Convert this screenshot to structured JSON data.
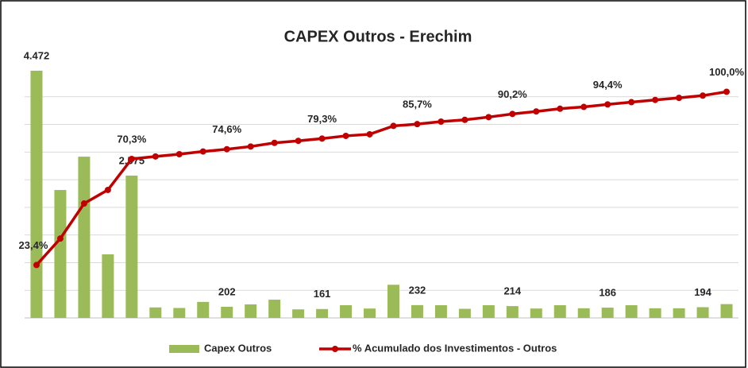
{
  "chart_data": {
    "type": "bar",
    "title": "CAPEX Outros  - Erechim",
    "categories": [
      null,
      null,
      null,
      null,
      null,
      null,
      null,
      null,
      null,
      null,
      null,
      null,
      null,
      null,
      null,
      null,
      null,
      null,
      null,
      null,
      null,
      null,
      null,
      null,
      null,
      null,
      null,
      null,
      null,
      null
    ],
    "series": [
      {
        "name": "Capex Outros",
        "color": "#9bbb59",
        "type": "bar",
        "values": [
          4472,
          2314,
          2917,
          1150,
          2575,
          190,
          180,
          290,
          202,
          245,
          330,
          155,
          161,
          230,
          170,
          600,
          232,
          230,
          165,
          230,
          214,
          170,
          230,
          175,
          186,
          230,
          175,
          175,
          194,
          250
        ],
        "value_labels": [
          "4.472",
          null,
          null,
          null,
          "2.575",
          null,
          null,
          null,
          "202",
          null,
          null,
          null,
          "161",
          null,
          null,
          null,
          "232",
          null,
          null,
          null,
          "214",
          null,
          null,
          null,
          "186",
          null,
          null,
          null,
          "194",
          null
        ]
      },
      {
        "name": "% Acumulado dos Investimentos  - Outros",
        "color": "#c00000",
        "type": "line",
        "axis": "y2",
        "values": [
          23.4,
          35.1,
          50.6,
          56.6,
          70.3,
          71.4,
          72.4,
          73.6,
          74.6,
          75.8,
          77.4,
          78.3,
          79.3,
          80.5,
          81.2,
          84.9,
          85.7,
          86.8,
          87.6,
          88.8,
          90.2,
          91.3,
          92.5,
          93.3,
          94.4,
          95.4,
          96.4,
          97.3,
          98.3,
          100
        ],
        "value_labels": [
          "23,4%",
          null,
          null,
          null,
          "70,3%",
          null,
          null,
          null,
          "74,6%",
          null,
          null,
          null,
          "79,3%",
          null,
          null,
          null,
          "85,7%",
          null,
          null,
          null,
          "90,2%",
          null,
          null,
          null,
          "94,4%",
          null,
          null,
          null,
          null,
          "100,0%"
        ]
      }
    ],
    "ylim": [
      0,
      4500
    ],
    "yticks": [
      0,
      500,
      1000,
      1500,
      2000,
      2500,
      3000,
      3500,
      4000
    ],
    "y2lim": [
      0,
      110
    ],
    "grid": true,
    "legend": "bottom"
  }
}
